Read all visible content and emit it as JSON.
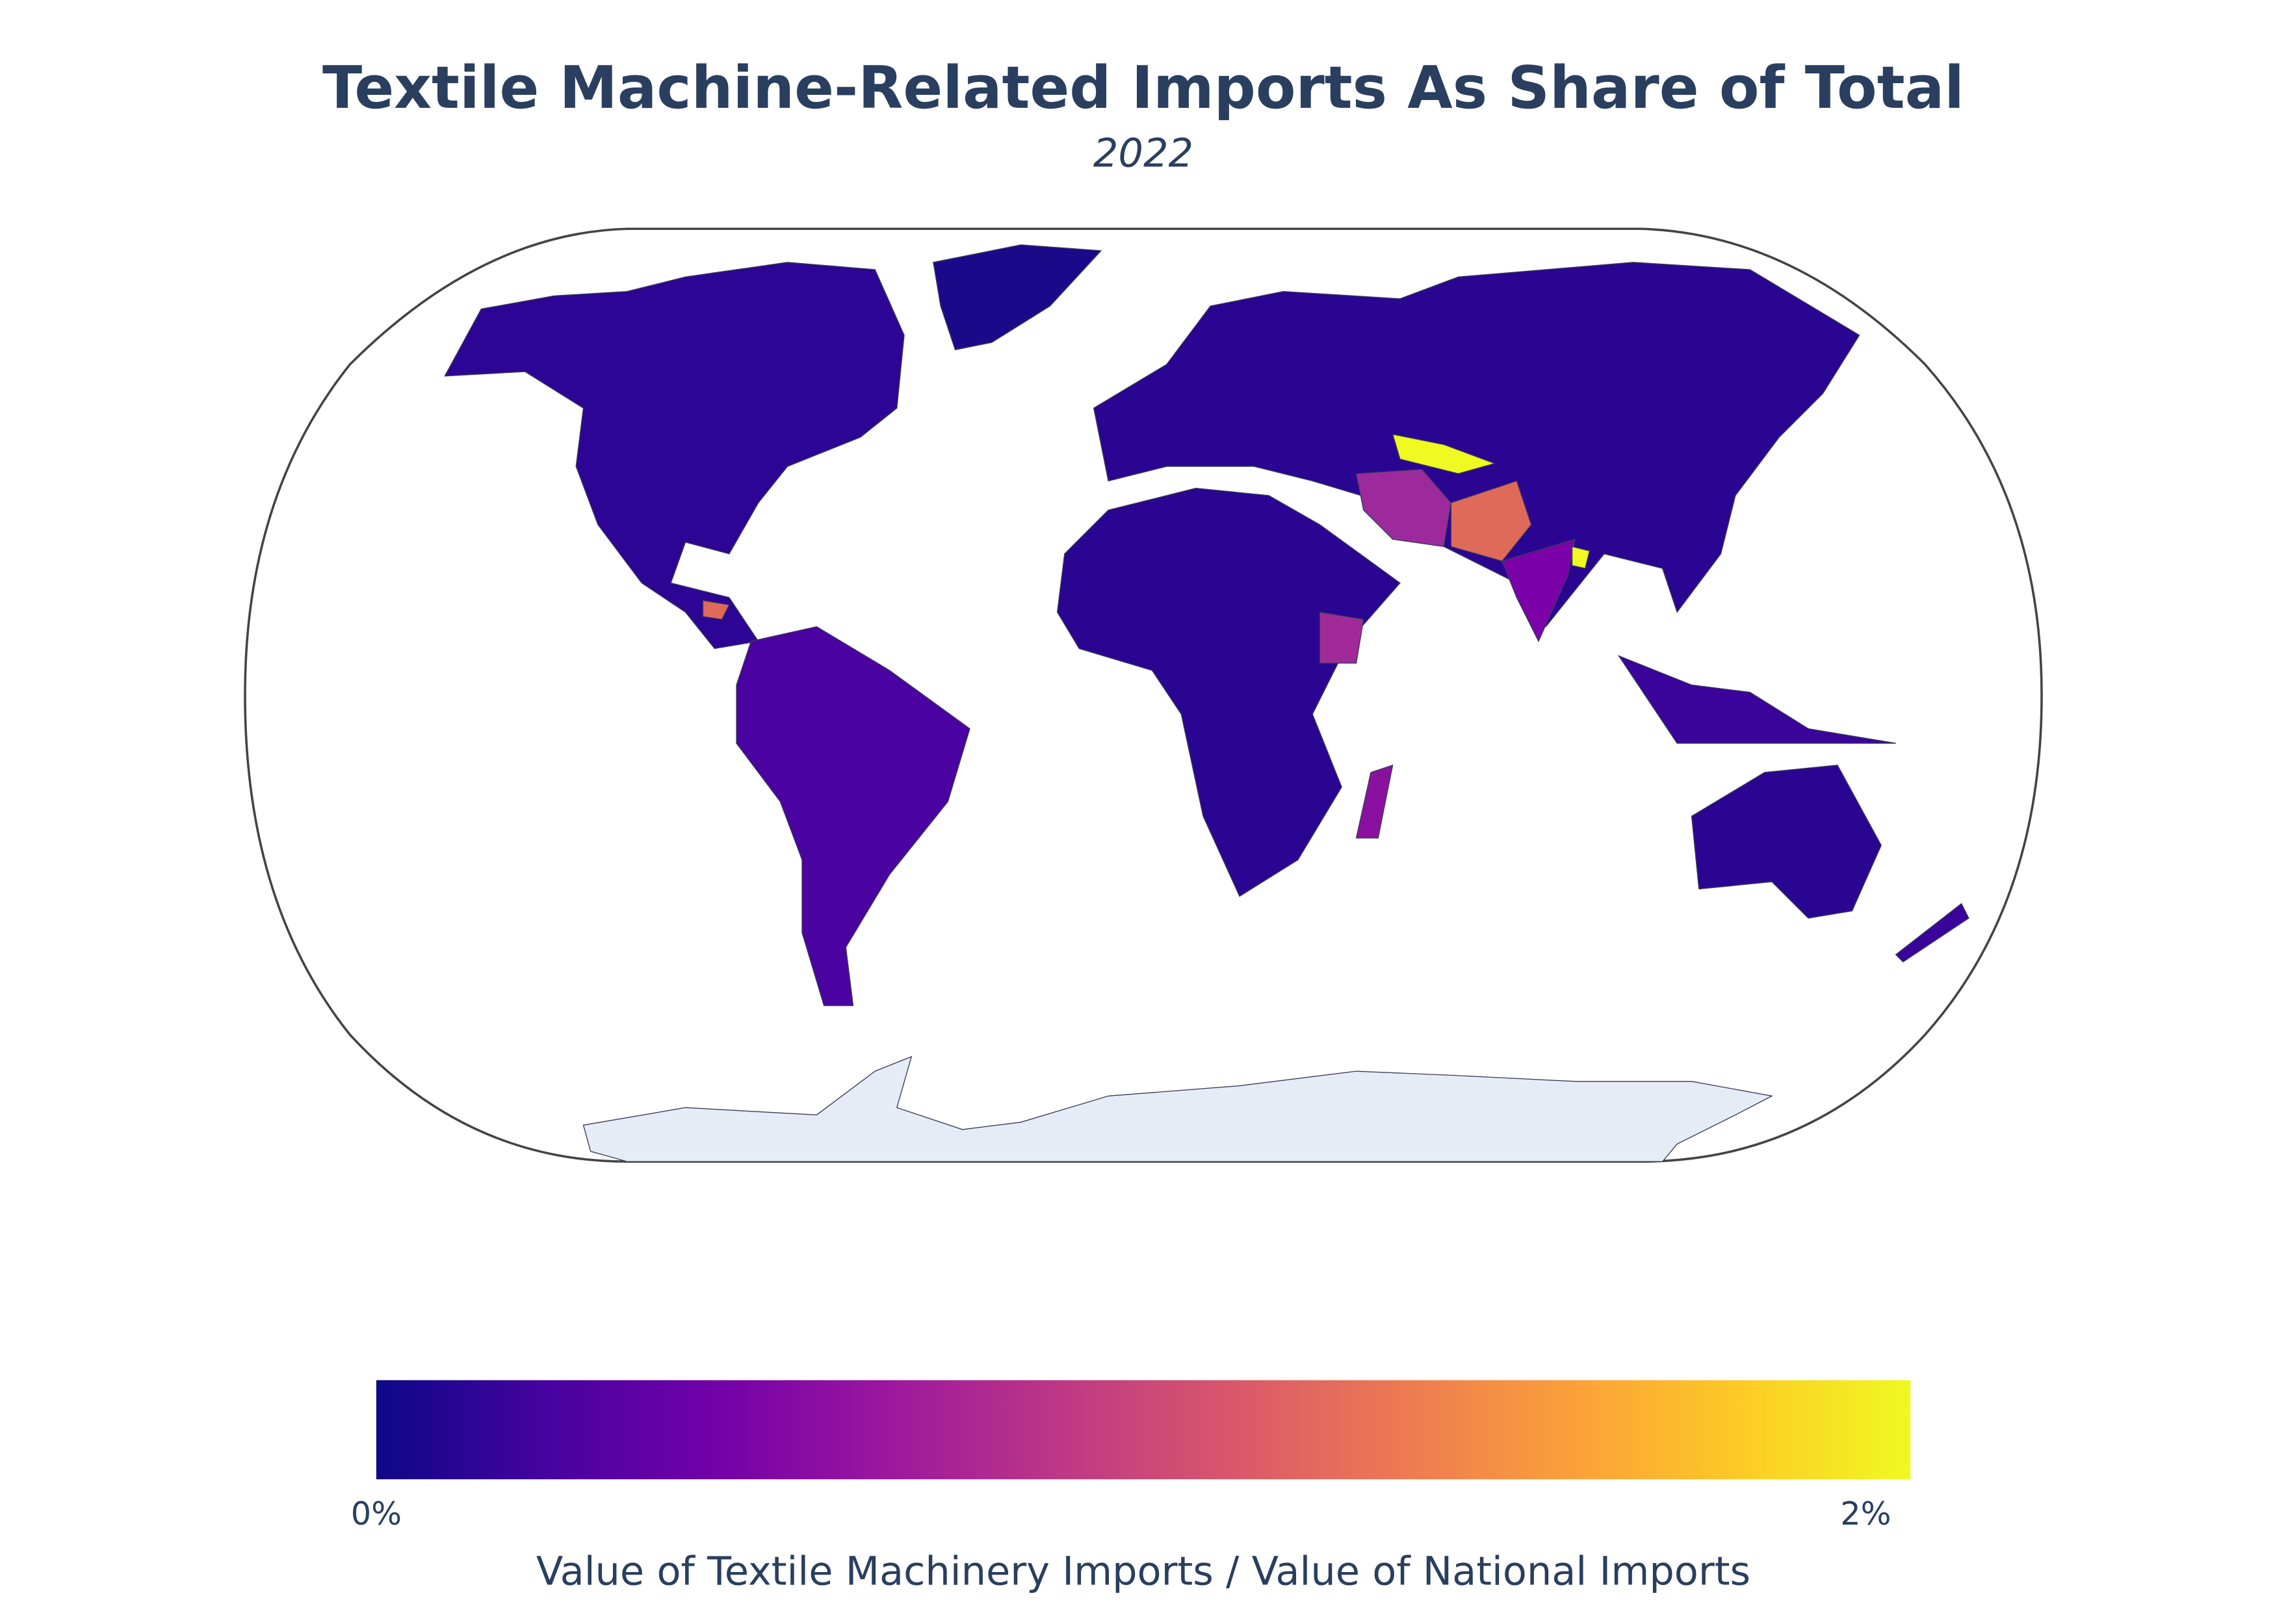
{
  "chart_data": {
    "type": "choropleth",
    "title": "Textile Machine-Related Imports As Share of Total",
    "subtitle": "2022",
    "colorbar_title": "Value of Textile Machinery Imports / Value of National Imports",
    "zlim": [
      0,
      2.06
    ],
    "ticks": [
      {
        "value": 0,
        "label": "0%"
      },
      {
        "value": 2,
        "label": "2%"
      }
    ],
    "colorscale": [
      "#0d0887",
      "#46039f",
      "#7201a8",
      "#9c179e",
      "#bd3786",
      "#d8576b",
      "#ed7953",
      "#fb9f3a",
      "#fdca26",
      "#f0f921"
    ]
  }
}
